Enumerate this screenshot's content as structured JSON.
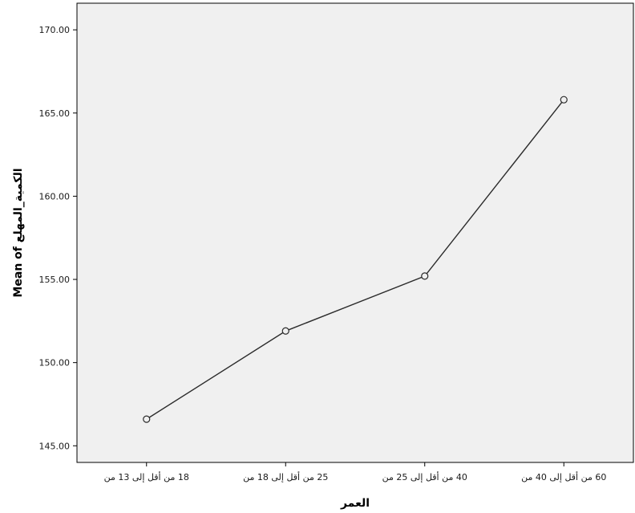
{
  "chart_data": {
    "type": "line",
    "xlabel": "العمر",
    "ylabel": "Mean of الكمية_المهلع",
    "categories": [
      "18 من أقل إلى 13 من",
      "25 من أقل إلى 18 من",
      "40 من أقل إلى 25 من",
      "60 من أقل إلى 40 من"
    ],
    "series": [
      {
        "values": [
          146.6,
          151.9,
          155.2,
          165.8
        ]
      }
    ],
    "ylim": [
      144.0,
      171.6
    ],
    "yticks": [
      "145.00",
      "150.00",
      "155.00",
      "160.00",
      "165.00",
      "170.00"
    ],
    "grid": false,
    "colors": {
      "plot_background": "#f0f0f0",
      "line": "#2b2b2b",
      "marker_fill": "#f0f0f0"
    }
  }
}
